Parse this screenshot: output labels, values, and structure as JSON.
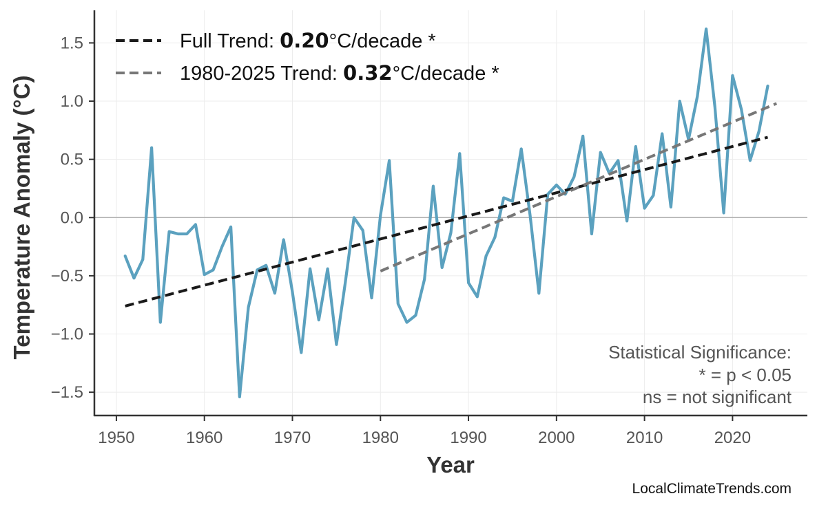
{
  "chart_data": {
    "type": "line",
    "xlabel": "Year",
    "ylabel": "Temperature Anomaly (°C)",
    "xlim": [
      1947.5,
      2028.5
    ],
    "ylim": [
      -1.7,
      1.78
    ],
    "x_ticks": [
      1950,
      1960,
      1970,
      1980,
      1990,
      2000,
      2010,
      2020
    ],
    "y_ticks": [
      -1.5,
      -1.0,
      -0.5,
      0.0,
      0.5,
      1.0,
      1.5
    ],
    "x_tick_labels": [
      "1950",
      "1960",
      "1970",
      "1980",
      "1990",
      "2000",
      "2010",
      "2020"
    ],
    "y_tick_labels": [
      "−1.5",
      "−1.0",
      "−0.5",
      "0.0",
      "0.5",
      "1.0",
      "1.5"
    ],
    "grid": true,
    "zero_line": true,
    "series": [
      {
        "color": "#5ba1bf",
        "x": [
          1951,
          1952,
          1953,
          1954,
          1955,
          1956,
          1957,
          1958,
          1959,
          1960,
          1961,
          1962,
          1963,
          1964,
          1965,
          1966,
          1967,
          1968,
          1969,
          1970,
          1971,
          1972,
          1973,
          1974,
          1975,
          1976,
          1977,
          1978,
          1979,
          1980,
          1981,
          1982,
          1983,
          1984,
          1985,
          1986,
          1987,
          1988,
          1989,
          1990,
          1991,
          1992,
          1993,
          1994,
          1995,
          1996,
          1997,
          1998,
          1999,
          2000,
          2001,
          2002,
          2003,
          2004,
          2005,
          2006,
          2007,
          2008,
          2009,
          2010,
          2011,
          2012,
          2013,
          2014,
          2015,
          2016,
          2017,
          2018,
          2019,
          2020,
          2021,
          2022,
          2023,
          2024
        ],
        "y": [
          -0.33,
          -0.52,
          -0.36,
          0.6,
          -0.9,
          -0.12,
          -0.14,
          -0.14,
          -0.06,
          -0.49,
          -0.45,
          -0.25,
          -0.08,
          -1.54,
          -0.77,
          -0.45,
          -0.41,
          -0.65,
          -0.19,
          -0.64,
          -1.16,
          -0.44,
          -0.88,
          -0.44,
          -1.09,
          -0.56,
          0.0,
          -0.11,
          -0.69,
          0.02,
          0.49,
          -0.74,
          -0.9,
          -0.84,
          -0.53,
          0.27,
          -0.43,
          -0.13,
          0.55,
          -0.56,
          -0.68,
          -0.33,
          -0.17,
          0.17,
          0.14,
          0.59,
          0.02,
          -0.65,
          0.2,
          0.28,
          0.2,
          0.35,
          0.7,
          -0.14,
          0.56,
          0.38,
          0.49,
          -0.03,
          0.61,
          0.08,
          0.19,
          0.72,
          0.09,
          1.0,
          0.67,
          1.04,
          1.62,
          0.95,
          0.04,
          1.22,
          0.93,
          0.49,
          0.74,
          1.13
        ]
      },
      {
        "name": "Full Trend",
        "color": "#1a1a1a",
        "dash": "dashed",
        "x": [
          1951,
          2024
        ],
        "y": [
          -0.76,
          0.69
        ]
      },
      {
        "name": "1980-2025 Trend",
        "color": "#777777",
        "dash": "dashed",
        "x": [
          1980,
          2025
        ],
        "y": [
          -0.46,
          0.98
        ]
      }
    ],
    "legend": {
      "position": "top-left",
      "entries": [
        {
          "prefix": "Full Trend: ",
          "value": "0.20",
          "suffix": "°C/decade *"
        },
        {
          "prefix": "1980-2025 Trend: ",
          "value": "0.32",
          "suffix": "°C/decade *"
        }
      ]
    },
    "annotation": [
      "Statistical Significance:",
      "* = p < 0.05",
      "ns = not significant"
    ],
    "credit": "LocalClimateTrends.com"
  }
}
